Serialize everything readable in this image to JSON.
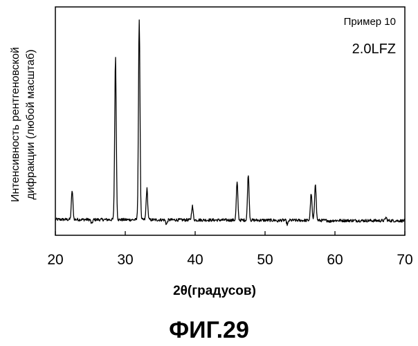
{
  "chart_data": {
    "type": "line",
    "xlabel": "2θ(градусов)",
    "ylabel_lines": [
      "Интенсивность рентгеновской",
      "дифракции (любой масштаб)"
    ],
    "xlim": [
      20,
      70
    ],
    "ylim": [
      0,
      100
    ],
    "x_ticks": [
      20,
      30,
      40,
      50,
      60,
      70
    ],
    "grid": false,
    "legend": {
      "position": "top-right",
      "lines": [
        "Пример 10",
        "2.0LFZ"
      ]
    },
    "series": [
      {
        "baseline": 3.5,
        "peaks": [
          {
            "x": 22.4,
            "y": 17
          },
          {
            "x": 25.2,
            "y": 1.5
          },
          {
            "x": 28.6,
            "y": 79
          },
          {
            "x": 32.0,
            "y": 96
          },
          {
            "x": 33.1,
            "y": 18
          },
          {
            "x": 35.9,
            "y": 1.5
          },
          {
            "x": 39.6,
            "y": 10
          },
          {
            "x": 46.0,
            "y": 21
          },
          {
            "x": 47.6,
            "y": 25
          },
          {
            "x": 51.8,
            "y": 3
          },
          {
            "x": 53.2,
            "y": 1.5
          },
          {
            "x": 56.6,
            "y": 16
          },
          {
            "x": 57.2,
            "y": 21
          },
          {
            "x": 59.3,
            "y": 3
          },
          {
            "x": 67.3,
            "y": 5
          }
        ]
      }
    ]
  },
  "figure_caption": "ФИГ.29"
}
